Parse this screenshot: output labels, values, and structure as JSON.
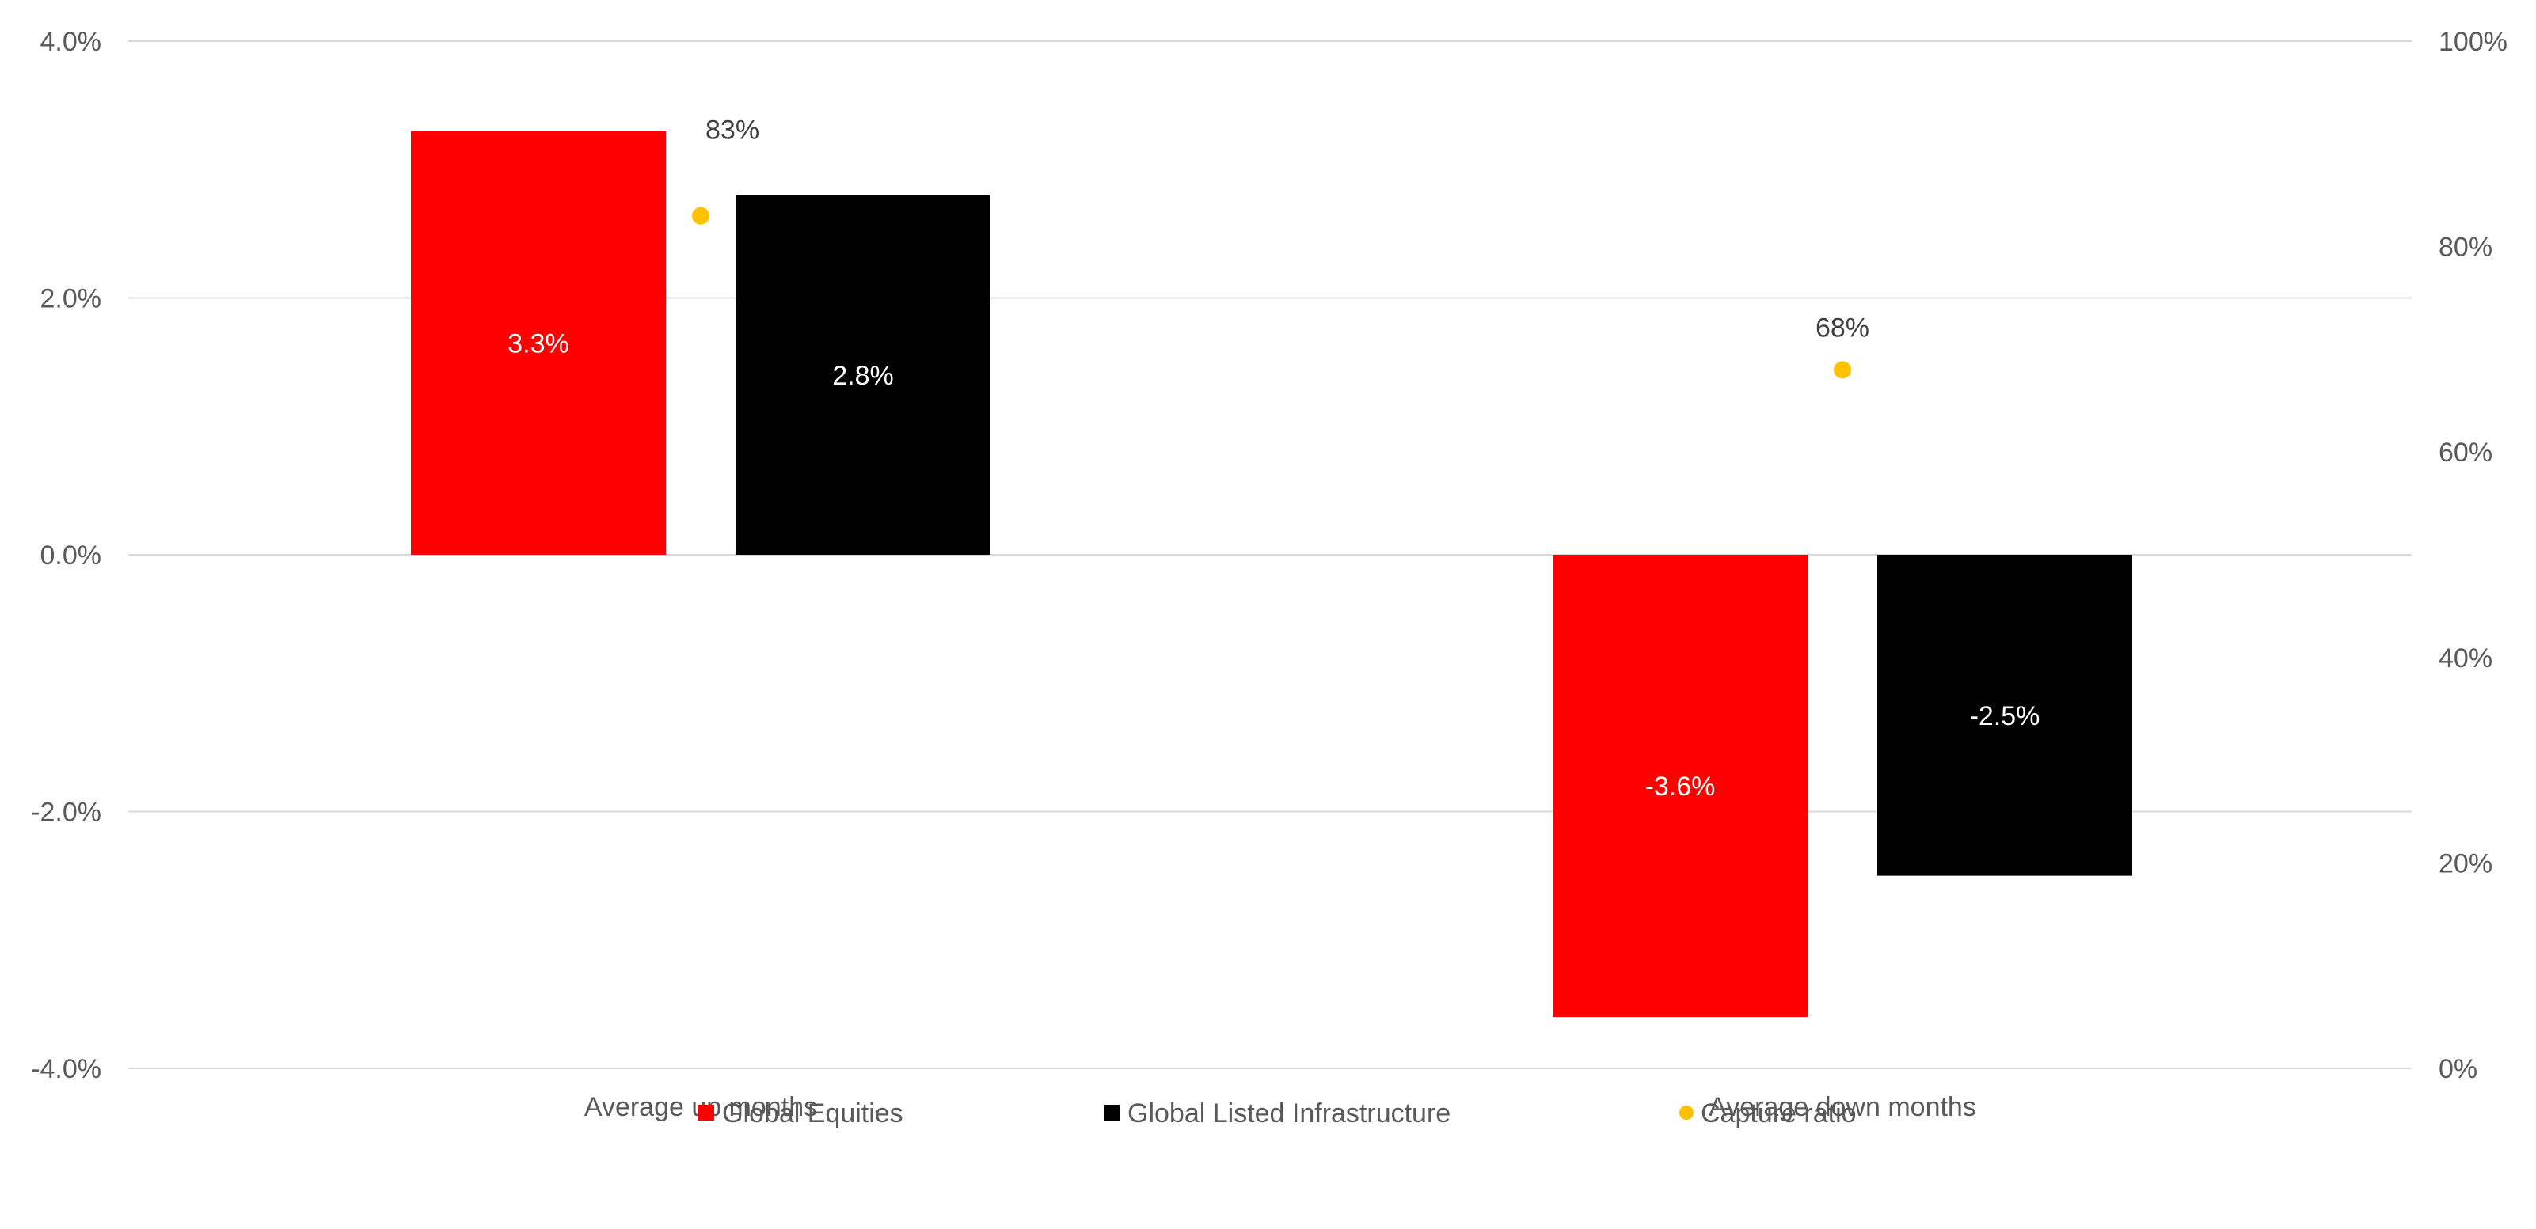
{
  "chart_data": {
    "type": "bar",
    "categories": [
      "Average up months",
      "Average down months"
    ],
    "series": [
      {
        "name": "Global Equities",
        "values": [
          3.3,
          -3.6
        ],
        "labels": [
          "3.3%",
          "-3.6%"
        ],
        "color": "#ff0000"
      },
      {
        "name": "Global Listed Infrastructure",
        "values": [
          2.8,
          -2.5
        ],
        "labels": [
          "2.8%",
          "-2.5%"
        ],
        "color": "#000000"
      }
    ],
    "secondary_series": {
      "name": "Capture ratio",
      "type": "scatter",
      "axis": "right",
      "values": [
        83,
        68
      ],
      "labels": [
        "83%",
        "68%"
      ],
      "color": "#ffc000"
    },
    "y_left": {
      "lim": [
        -4.0,
        4.0
      ],
      "ticks": [
        4.0,
        2.0,
        0.0,
        -2.0,
        -4.0
      ],
      "tick_labels": [
        "4.0%",
        "2.0%",
        "0.0%",
        "-2.0%",
        "-4.0%"
      ]
    },
    "y_right": {
      "lim": [
        0,
        100
      ],
      "ticks": [
        100,
        80,
        60,
        40,
        20,
        0
      ],
      "tick_labels": [
        "100%",
        "80%",
        "60%",
        "40%",
        "20%",
        "0%"
      ]
    },
    "grid": true,
    "grid_color": "#d9d9d9",
    "legend_position": "bottom",
    "legend": [
      {
        "label": "Global Equities",
        "marker": "square",
        "color": "#ff0000"
      },
      {
        "label": "Global Listed Infrastructure",
        "marker": "square",
        "color": "#000000"
      },
      {
        "label": "Capture ratio",
        "marker": "circle",
        "color": "#ffc000"
      }
    ]
  }
}
